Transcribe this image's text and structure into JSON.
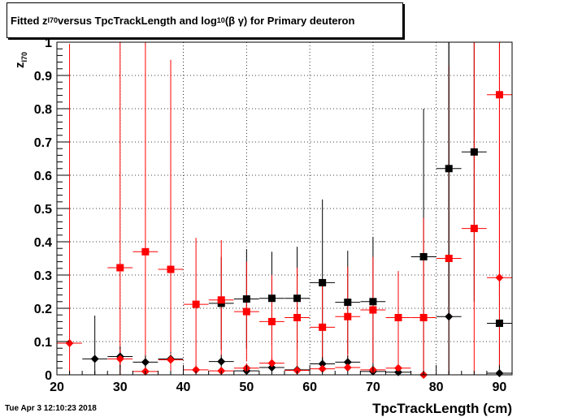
{
  "title": {
    "pre": "Fitted  z",
    "sub1": "I70",
    "mid": "  versus TpcTrackLength and log",
    "sub2": "10",
    "post": " (β γ) for Primary deuteron"
  },
  "axis_labels": {
    "y_main": "z",
    "y_sub": "I70",
    "x": "TpcTrackLength (cm)"
  },
  "timestamp": "Tue Apr  3 12:10:23 2018",
  "chart_data": {
    "type": "scatter",
    "title": "Fitted z_I70 versus TpcTrackLength and log10 (β γ) for Primary deuteron",
    "xlabel": "TpcTrackLength (cm)",
    "ylabel": "z_I70",
    "xlim": [
      20,
      92
    ],
    "ylim": [
      0,
      1
    ],
    "x_ticks": [
      20,
      30,
      40,
      50,
      60,
      70,
      80,
      90
    ],
    "y_ticks": [
      0,
      0.1,
      0.2,
      0.3,
      0.4,
      0.5,
      0.6,
      0.7,
      0.8,
      0.9,
      1
    ],
    "grid": true,
    "series": [
      {
        "color": "#000000",
        "marker": "square",
        "points": [
          {
            "x": 46,
            "y": 0.215,
            "err": 0.14
          },
          {
            "x": 50,
            "y": 0.228,
            "err": 0.15
          },
          {
            "x": 54,
            "y": 0.23,
            "err": 0.14
          },
          {
            "x": 58,
            "y": 0.23,
            "err": 0.155
          },
          {
            "x": 62,
            "y": 0.277,
            "err": 0.25
          },
          {
            "x": 66,
            "y": 0.218,
            "err": 0.155
          },
          {
            "x": 70,
            "y": 0.22,
            "err": 0.195
          },
          {
            "x": 78,
            "y": 0.355,
            "err": 0.445
          },
          {
            "x": 82,
            "y": 0.62,
            "err": 0.45
          },
          {
            "x": 86,
            "y": 0.67,
            "err": 0.45
          },
          {
            "x": 90,
            "y": 0.155,
            "err": 0.145
          }
        ]
      },
      {
        "color": "#ff0000",
        "marker": "square",
        "points": [
          {
            "x": 30,
            "y": 0.322,
            "err": 0.75
          },
          {
            "x": 34,
            "y": 0.37,
            "err": 0.75
          },
          {
            "x": 38,
            "y": 0.317,
            "err": 0.63
          },
          {
            "x": 42,
            "y": 0.212,
            "err": 0.2
          },
          {
            "x": 46,
            "y": 0.225,
            "err": 0.18
          },
          {
            "x": 50,
            "y": 0.19,
            "err": 0.15
          },
          {
            "x": 54,
            "y": 0.16,
            "err": 0.14
          },
          {
            "x": 58,
            "y": 0.172,
            "err": 0.15
          },
          {
            "x": 62,
            "y": 0.143,
            "err": 0.13
          },
          {
            "x": 66,
            "y": 0.175,
            "err": 0.15
          },
          {
            "x": 70,
            "y": 0.195,
            "err": 0.16
          },
          {
            "x": 74,
            "y": 0.172,
            "err": 0.14
          },
          {
            "x": 78,
            "y": 0.172,
            "err": 0.3
          },
          {
            "x": 82,
            "y": 0.35,
            "err": 0.58
          },
          {
            "x": 86,
            "y": 0.44,
            "err": 0.6
          },
          {
            "x": 90,
            "y": 0.842,
            "err": 0.6
          }
        ]
      },
      {
        "color": "#000000",
        "marker": "diamond",
        "points": [
          {
            "x": 26,
            "y": 0.048,
            "err": 0.13
          },
          {
            "x": 30,
            "y": 0.055,
            "err": 0.03
          },
          {
            "x": 34,
            "y": 0.038,
            "err": 0.02
          },
          {
            "x": 38,
            "y": 0.048,
            "err": 0.02
          },
          {
            "x": 46,
            "y": 0.04,
            "err": 0.02
          },
          {
            "x": 50,
            "y": 0.012,
            "err": 0.01
          },
          {
            "x": 54,
            "y": 0.022,
            "err": 0.015
          },
          {
            "x": 58,
            "y": 0.015,
            "err": 0.01
          },
          {
            "x": 62,
            "y": 0.033,
            "err": 0.02
          },
          {
            "x": 66,
            "y": 0.038,
            "err": 0.02
          },
          {
            "x": 70,
            "y": 0.01,
            "err": 0.01
          },
          {
            "x": 74,
            "y": 0.008,
            "err": 0.01
          },
          {
            "x": 82,
            "y": 0.175,
            "err": 0.83
          },
          {
            "x": 90,
            "y": 0.005,
            "err": 0.01
          }
        ]
      },
      {
        "color": "#ff0000",
        "marker": "diamond",
        "points": [
          {
            "x": 22,
            "y": 0.095,
            "err": 0.9
          },
          {
            "x": 30,
            "y": 0.048,
            "err": 0.03
          },
          {
            "x": 34,
            "y": 0.01,
            "err": 0.01
          },
          {
            "x": 38,
            "y": 0.045,
            "err": 0.02
          },
          {
            "x": 42,
            "y": 0.015,
            "err": 0.01
          },
          {
            "x": 46,
            "y": 0.012,
            "err": 0.01
          },
          {
            "x": 50,
            "y": 0.02,
            "err": 0.015
          },
          {
            "x": 54,
            "y": 0.035,
            "err": 0.02
          },
          {
            "x": 58,
            "y": 0.013,
            "err": 0.01
          },
          {
            "x": 62,
            "y": 0.018,
            "err": 0.01
          },
          {
            "x": 66,
            "y": 0.022,
            "err": 0.01
          },
          {
            "x": 70,
            "y": 0.015,
            "err": 0.01
          },
          {
            "x": 74,
            "y": 0.02,
            "err": 0.01
          },
          {
            "x": 78,
            "y": 0.0,
            "err": 0.005
          },
          {
            "x": 90,
            "y": 0.292,
            "err": 0.72
          }
        ]
      }
    ]
  }
}
